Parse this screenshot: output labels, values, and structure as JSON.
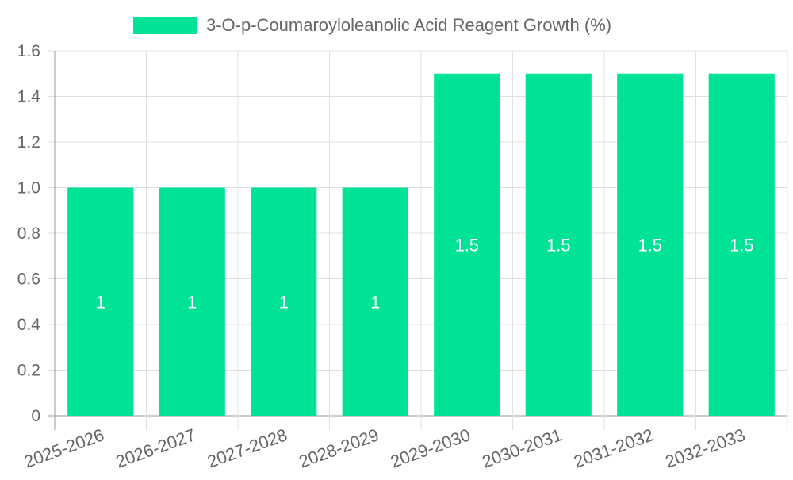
{
  "chart_data": {
    "type": "bar",
    "categories": [
      "2025-2026",
      "2026-2027",
      "2027-2028",
      "2028-2029",
      "2029-2030",
      "2030-2031",
      "2031-2032",
      "2032-2033"
    ],
    "series": [
      {
        "name": "3-O-p-Coumaroyloleanolic Acid Reagent Growth (%)",
        "values": [
          1,
          1,
          1,
          1,
          1.5,
          1.5,
          1.5,
          1.5
        ],
        "data_labels": [
          "1",
          "1",
          "1",
          "1",
          "1.5",
          "1.5",
          "1.5",
          "1.5"
        ],
        "color": "#00e396"
      }
    ],
    "ylim": [
      0,
      1.6
    ],
    "yticks": [
      0,
      0.2,
      0.4,
      0.6,
      0.8,
      1.0,
      1.2,
      1.4,
      1.6
    ],
    "ytick_labels": [
      "0",
      "0.2",
      "0.4",
      "0.6",
      "0.8",
      "1.0",
      "1.2",
      "1.4",
      "1.6"
    ],
    "grid": true,
    "legend_position": "top",
    "colors": {
      "bar": "#00e396",
      "grid": "#e0e0e0",
      "axis": "#999999",
      "text": "#666666",
      "data_label": "#ffffff"
    }
  }
}
